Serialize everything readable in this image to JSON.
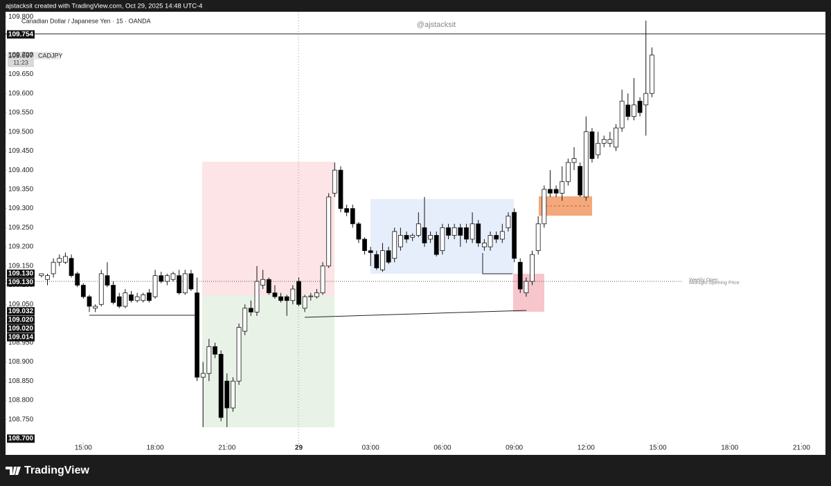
{
  "chart_data": {
    "type": "candlestick",
    "header": "ajstacksit created with TradingView.com, Oct 29, 2025 14:48 UTC-4",
    "title": "Canadian Dollar / Japanese Yen · 15 · OANDA",
    "watermark": "@ajstacksit",
    "current": {
      "price": "109.697",
      "symbol": "CADJPY",
      "countdown": "11:23"
    },
    "price_tags": [
      {
        "value": 109.754,
        "label": "109.754"
      },
      {
        "value": 109.13,
        "label": "109.130"
      },
      {
        "value": 109.13,
        "label": "109.130"
      },
      {
        "value": 109.032,
        "label": "109.032"
      },
      {
        "value": 109.02,
        "label": "109.020"
      },
      {
        "value": 109.02,
        "label": "109.020"
      },
      {
        "value": 109.014,
        "label": "109.014"
      },
      {
        "value": 108.7,
        "label": "108.700"
      }
    ],
    "annotations": [
      "Weekly Open",
      "Midnight Opening Price"
    ],
    "brand": "TradingView",
    "ylim": [
      108.69,
      109.813
    ],
    "yticks": [
      {
        "value": 109.8,
        "label": "109.800"
      },
      {
        "value": 109.75,
        "label": "109.750"
      },
      {
        "value": 109.7,
        "label": "109.700"
      },
      {
        "value": 109.65,
        "label": "109.650"
      },
      {
        "value": 109.6,
        "label": "109.600"
      },
      {
        "value": 109.55,
        "label": "109.550"
      },
      {
        "value": 109.5,
        "label": "109.500"
      },
      {
        "value": 109.45,
        "label": "109.450"
      },
      {
        "value": 109.4,
        "label": "109.400"
      },
      {
        "value": 109.35,
        "label": "109.350"
      },
      {
        "value": 109.3,
        "label": "109.300"
      },
      {
        "value": 109.25,
        "label": "109.250"
      },
      {
        "value": 109.2,
        "label": "109.200"
      },
      {
        "value": 109.15,
        "label": "109.150"
      },
      {
        "value": 109.1,
        "label": "109.100"
      },
      {
        "value": 109.05,
        "label": "109.050"
      },
      {
        "value": 109.0,
        "label": "109.000"
      },
      {
        "value": 108.95,
        "label": "108.950"
      },
      {
        "value": 108.9,
        "label": "108.900"
      },
      {
        "value": 108.85,
        "label": "108.850"
      },
      {
        "value": 108.8,
        "label": "108.800"
      },
      {
        "value": 108.75,
        "label": "108.750"
      }
    ],
    "xlim": [
      -6,
      131
    ],
    "xticks": [
      {
        "value": 7,
        "label": "15:00"
      },
      {
        "value": 19,
        "label": "18:00"
      },
      {
        "value": 31,
        "label": "21:00"
      },
      {
        "value": 43,
        "label": "29"
      },
      {
        "value": 55,
        "label": "03:00"
      },
      {
        "value": 67,
        "label": "06:00"
      },
      {
        "value": 79,
        "label": "09:00"
      },
      {
        "value": 91,
        "label": "12:00"
      },
      {
        "value": 103,
        "label": "15:00"
      },
      {
        "value": 115,
        "label": "18:00"
      },
      {
        "value": 127,
        "label": "21:00"
      }
    ],
    "candles": [
      [
        109.125,
        109.13,
        109.12,
        109.13
      ],
      [
        109.115,
        109.13,
        109.1,
        109.125
      ],
      [
        109.13,
        109.17,
        109.12,
        109.16
      ],
      [
        109.16,
        109.18,
        109.15,
        109.17
      ],
      [
        109.16,
        109.185,
        109.155,
        109.175
      ],
      [
        109.17,
        109.18,
        109.12,
        109.125
      ],
      [
        109.13,
        109.135,
        109.095,
        109.1
      ],
      [
        109.1,
        109.105,
        109.065,
        109.07
      ],
      [
        109.07,
        109.075,
        109.03,
        109.045
      ],
      [
        109.04,
        109.05,
        109.03,
        109.045
      ],
      [
        109.05,
        109.14,
        109.045,
        109.13
      ],
      [
        109.125,
        109.16,
        109.095,
        109.1
      ],
      [
        109.1,
        109.11,
        109.05,
        109.055
      ],
      [
        109.07,
        109.08,
        109.04,
        109.045
      ],
      [
        109.045,
        109.09,
        109.04,
        109.08
      ],
      [
        109.075,
        109.085,
        109.055,
        109.06
      ],
      [
        109.06,
        109.08,
        109.055,
        109.07
      ],
      [
        109.06,
        109.08,
        109.055,
        109.075
      ],
      [
        109.08,
        109.09,
        109.055,
        109.06
      ],
      [
        109.07,
        109.14,
        109.065,
        109.125
      ],
      [
        109.125,
        109.135,
        109.105,
        109.11
      ],
      [
        109.11,
        109.13,
        109.1,
        109.125
      ],
      [
        109.115,
        109.135,
        109.11,
        109.13
      ],
      [
        109.125,
        109.14,
        109.075,
        109.08
      ],
      [
        109.08,
        109.14,
        109.075,
        109.13
      ],
      [
        109.13,
        109.14,
        109.085,
        109.09
      ],
      [
        109.08,
        109.12,
        108.85,
        108.86
      ],
      [
        108.86,
        108.9,
        108.73,
        108.87
      ],
      [
        108.87,
        108.96,
        108.85,
        108.94
      ],
      [
        108.94,
        108.95,
        108.91,
        108.92
      ],
      [
        108.92,
        108.93,
        108.745,
        108.755
      ],
      [
        108.85,
        108.87,
        108.73,
        108.78
      ],
      [
        108.78,
        108.86,
        108.77,
        108.85
      ],
      [
        108.85,
        109.0,
        108.84,
        108.99
      ],
      [
        108.98,
        109.05,
        108.97,
        109.04
      ],
      [
        109.04,
        109.06,
        109.02,
        109.03
      ],
      [
        109.03,
        109.15,
        109.02,
        109.11
      ],
      [
        109.1,
        109.14,
        109.09,
        109.115
      ],
      [
        109.115,
        109.12,
        109.075,
        109.08
      ],
      [
        109.08,
        109.1,
        109.065,
        109.07
      ],
      [
        109.07,
        109.08,
        109.055,
        109.06
      ],
      [
        109.07,
        109.075,
        109.02,
        109.06
      ],
      [
        109.06,
        109.1,
        109.05,
        109.09
      ],
      [
        109.11,
        109.12,
        109.045,
        109.05
      ],
      [
        109.04,
        109.075,
        109.03,
        109.07
      ],
      [
        109.07,
        109.08,
        109.06,
        109.072
      ],
      [
        109.07,
        109.09,
        109.065,
        109.08
      ],
      [
        109.08,
        109.16,
        109.075,
        109.15
      ],
      [
        109.15,
        109.34,
        109.145,
        109.33
      ],
      [
        109.34,
        109.42,
        109.33,
        109.4
      ],
      [
        109.4,
        109.41,
        109.29,
        109.3
      ],
      [
        109.3,
        109.31,
        109.28,
        109.29
      ],
      [
        109.3,
        109.31,
        109.25,
        109.26
      ],
      [
        109.26,
        109.265,
        109.21,
        109.22
      ],
      [
        109.22,
        109.225,
        109.18,
        109.19
      ],
      [
        109.19,
        109.2,
        109.15,
        109.185
      ],
      [
        109.18,
        109.19,
        109.14,
        109.145
      ],
      [
        109.14,
        109.21,
        109.135,
        109.19
      ],
      [
        109.19,
        109.2,
        109.155,
        109.16
      ],
      [
        109.17,
        109.25,
        109.16,
        109.24
      ],
      [
        109.2,
        109.25,
        109.19,
        109.23
      ],
      [
        109.23,
        109.24,
        109.21,
        109.22
      ],
      [
        109.225,
        109.235,
        109.215,
        109.23
      ],
      [
        109.23,
        109.29,
        109.225,
        109.26
      ],
      [
        109.25,
        109.33,
        109.2,
        109.21
      ],
      [
        109.22,
        109.24,
        109.21,
        109.23
      ],
      [
        109.23,
        109.24,
        109.175,
        109.18
      ],
      [
        109.19,
        109.26,
        109.18,
        109.25
      ],
      [
        109.25,
        109.26,
        109.22,
        109.23
      ],
      [
        109.23,
        109.26,
        109.22,
        109.25
      ],
      [
        109.25,
        109.26,
        109.2,
        109.23
      ],
      [
        109.25,
        109.26,
        109.21,
        109.22
      ],
      [
        109.22,
        109.29,
        109.21,
        109.26
      ],
      [
        109.26,
        109.27,
        109.2,
        109.21
      ],
      [
        109.2,
        109.22,
        109.19,
        109.21
      ],
      [
        109.2,
        109.24,
        109.19,
        109.23
      ],
      [
        109.23,
        109.24,
        109.21,
        109.22
      ],
      [
        109.22,
        109.26,
        109.21,
        109.24
      ],
      [
        109.25,
        109.29,
        109.24,
        109.28
      ],
      [
        109.29,
        109.3,
        109.16,
        109.17
      ],
      [
        109.16,
        109.17,
        109.08,
        109.09
      ],
      [
        109.08,
        109.12,
        109.07,
        109.11
      ],
      [
        109.11,
        109.19,
        109.1,
        109.18
      ],
      [
        109.19,
        109.28,
        109.18,
        109.26
      ],
      [
        109.26,
        109.36,
        109.25,
        109.35
      ],
      [
        109.35,
        109.4,
        109.33,
        109.34
      ],
      [
        109.35,
        109.36,
        109.33,
        109.34
      ],
      [
        109.34,
        109.41,
        109.32,
        109.37
      ],
      [
        109.37,
        109.43,
        109.36,
        109.42
      ],
      [
        109.42,
        109.46,
        109.4,
        109.43
      ],
      [
        109.41,
        109.42,
        109.33,
        109.335
      ],
      [
        109.33,
        109.54,
        109.32,
        109.5
      ],
      [
        109.5,
        109.51,
        109.42,
        109.43
      ],
      [
        109.44,
        109.5,
        109.43,
        109.47
      ],
      [
        109.47,
        109.49,
        109.46,
        109.48
      ],
      [
        109.47,
        109.5,
        109.46,
        109.48
      ],
      [
        109.46,
        109.52,
        109.45,
        109.51
      ],
      [
        109.51,
        109.61,
        109.5,
        109.58
      ],
      [
        109.57,
        109.6,
        109.53,
        109.54
      ],
      [
        109.54,
        109.64,
        109.53,
        109.57
      ],
      [
        109.58,
        109.59,
        109.54,
        109.55
      ],
      [
        109.57,
        109.79,
        109.49,
        109.6
      ],
      [
        109.6,
        109.72,
        109.59,
        109.7
      ]
    ]
  }
}
